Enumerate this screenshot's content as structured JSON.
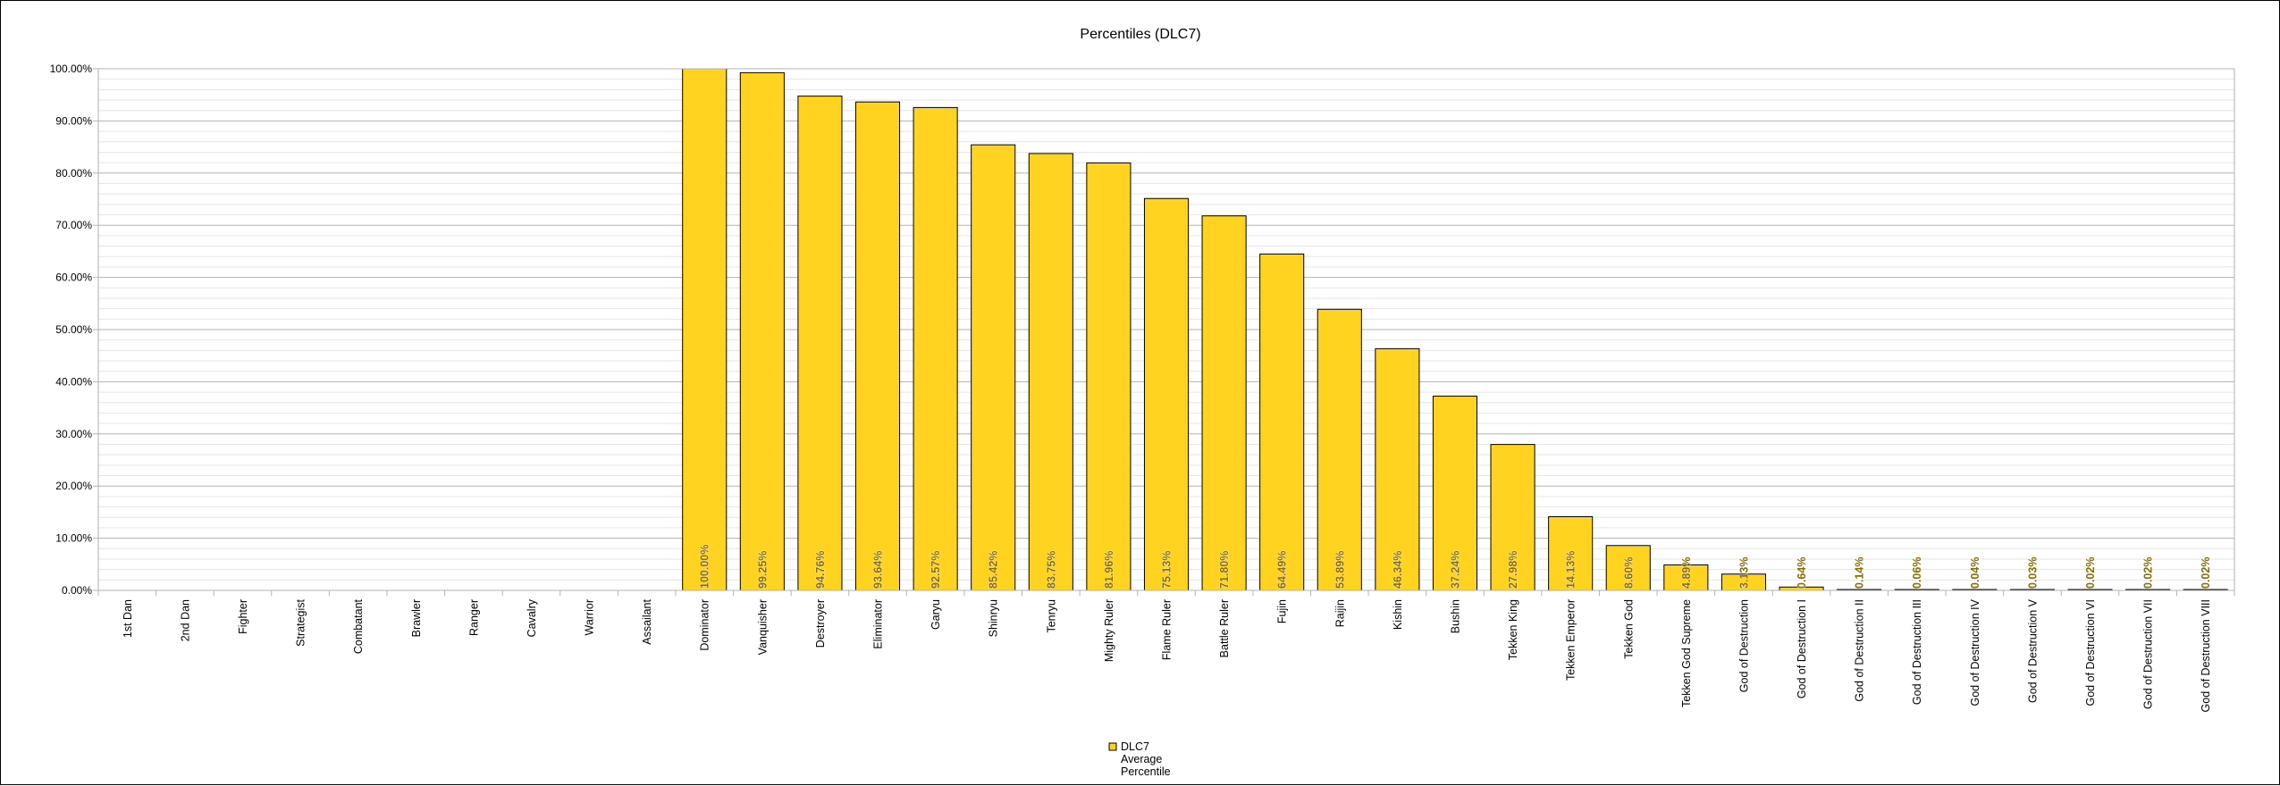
{
  "chart_data": {
    "type": "bar",
    "title": "Percentiles (DLC7)",
    "ylim": [
      0,
      1
    ],
    "yticks": [
      "0.00%",
      "10.00%",
      "20.00%",
      "30.00%",
      "40.00%",
      "50.00%",
      "60.00%",
      "70.00%",
      "80.00%",
      "90.00%",
      "100.00%"
    ],
    "grid": true,
    "legend_position": "bottom",
    "legend": [
      "DLC7",
      "Average",
      "Percentile"
    ],
    "bar_color": "#ffd320",
    "categories": [
      "1st Dan",
      "2nd Dan",
      "Fighter",
      "Strategist",
      "Combatant",
      "Brawler",
      "Ranger",
      "Cavalry",
      "Warrior",
      "Assailant",
      "Dominator",
      "Vanquisher",
      "Destroyer",
      "Eliminator",
      "Garyu",
      "Shinryu",
      "Tenryu",
      "Mighty Ruler",
      "Flame Ruler",
      "Battle Ruler",
      "Fujin",
      "Raijin",
      "Kishin",
      "Bushin",
      "Tekken King",
      "Tekken Emperor",
      "Tekken God",
      "Tekken God Supreme",
      "God of Destruction",
      "God of Destruction I",
      "God of Destruction II",
      "God of Destruction III",
      "God of Destruction IV",
      "God of Destruction V",
      "God of Destruction VI",
      "God of Destruction VII",
      "God of Destruction VIII"
    ],
    "series": [
      {
        "name": "DLC7 Average Percentile",
        "values": [
          null,
          null,
          null,
          null,
          null,
          null,
          null,
          null,
          null,
          null,
          1.0,
          0.9925,
          0.9476,
          0.9364,
          0.9257,
          0.8542,
          0.8375,
          0.8196,
          0.7513,
          0.718,
          0.6449,
          0.5389,
          0.4634,
          0.3724,
          0.2798,
          0.1413,
          0.086,
          0.0489,
          0.0313,
          0.0064,
          0.0014,
          0.0006,
          0.0004,
          0.0003,
          0.0002,
          0.0002,
          0.0002
        ],
        "labels": [
          "",
          "",
          "",
          "",
          "",
          "",
          "",
          "",
          "",
          "",
          "100.00%",
          "99.25%",
          "94.76%",
          "93.64%",
          "92.57%",
          "85.42%",
          "83.75%",
          "81.96%",
          "75.13%",
          "71.80%",
          "64.49%",
          "53.89%",
          "46.34%",
          "37.24%",
          "27.98%",
          "14.13%",
          "8.60%",
          "4.89%",
          "3.13%",
          "0.64%",
          "0.14%",
          "0.06%",
          "0.04%",
          "0.03%",
          "0.02%",
          "0.02%",
          "0.02%"
        ]
      }
    ]
  }
}
